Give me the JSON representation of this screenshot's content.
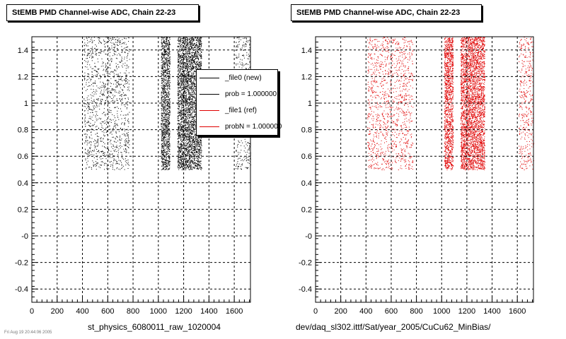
{
  "titles": {
    "left": "StEMB PMD Channel-wise ADC, Chain 22-23",
    "right": "StEMB PMD Channel-wise ADC, Chain 22-23"
  },
  "captions": {
    "left": "st_physics_6080011_raw_1020004",
    "right": "dev/daq_sl302.ittf/Sat/year_2005/CuCu62_MinBias/",
    "corner": "Fri Aug 19 20:44:06 2005"
  },
  "legend": {
    "entries": [
      {
        "label": "_file0 (new)",
        "color": "#000000"
      },
      {
        "label": "prob = 1.000000",
        "color": "#000000"
      },
      {
        "label": "_file1 (ref)",
        "color": "#e00000"
      },
      {
        "label": "probN = 1.000000",
        "color": "#e00000"
      }
    ]
  },
  "colors": {
    "new": "#000000",
    "ref": "#e00000"
  },
  "chart_data": [
    {
      "type": "scatter",
      "title": "StEMB PMD Channel-wise ADC, Chain 22-23",
      "xlabel": "",
      "ylabel": "",
      "xlim": [
        0,
        1728
      ],
      "ylim": [
        -0.5,
        1.5
      ],
      "xticks": [
        0,
        200,
        400,
        600,
        800,
        1000,
        1200,
        1400,
        1600
      ],
      "yticks": [
        -0.4,
        -0.2,
        0,
        0.2,
        0.4,
        0.6,
        0.8,
        1,
        1.2,
        1.4
      ],
      "ytick_labels": [
        "-0.4",
        "-0.2",
        "-0",
        "0.2",
        "0.4",
        "0.6",
        "0.8",
        "1",
        "1.2",
        "1.4"
      ],
      "grid": true,
      "legend_position": "right",
      "series": [
        {
          "name": "_file0 (new)",
          "color": "#000000",
          "y_range": [
            0.5,
            1.5
          ],
          "bands": [
            {
              "x0": 410,
              "x1": 770,
              "density": "sparse"
            },
            {
              "x0": 1020,
              "x1": 1090,
              "density": "dense"
            },
            {
              "x0": 1150,
              "x1": 1340,
              "density": "dense"
            },
            {
              "x0": 1610,
              "x1": 1728,
              "density": "sparse"
            }
          ]
        }
      ]
    },
    {
      "type": "scatter",
      "title": "StEMB PMD Channel-wise ADC, Chain 22-23",
      "xlabel": "",
      "ylabel": "",
      "xlim": [
        0,
        1728
      ],
      "ylim": [
        -0.5,
        1.5
      ],
      "xticks": [
        0,
        200,
        400,
        600,
        800,
        1000,
        1200,
        1400,
        1600
      ],
      "yticks": [
        -0.4,
        -0.2,
        0,
        0.2,
        0.4,
        0.6,
        0.8,
        1,
        1.2,
        1.4
      ],
      "ytick_labels": [
        "-0.4",
        "-0.2",
        "-0",
        "0.2",
        "0.4",
        "0.6",
        "0.8",
        "1",
        "1.2",
        "1.4"
      ],
      "grid": true,
      "series": [
        {
          "name": "_file1 (ref)",
          "color": "#e00000",
          "y_range": [
            0.5,
            1.5
          ],
          "bands": [
            {
              "x0": 410,
              "x1": 770,
              "density": "sparse"
            },
            {
              "x0": 1020,
              "x1": 1090,
              "density": "dense"
            },
            {
              "x0": 1150,
              "x1": 1340,
              "density": "dense"
            },
            {
              "x0": 1610,
              "x1": 1728,
              "density": "sparse"
            }
          ]
        }
      ]
    }
  ]
}
